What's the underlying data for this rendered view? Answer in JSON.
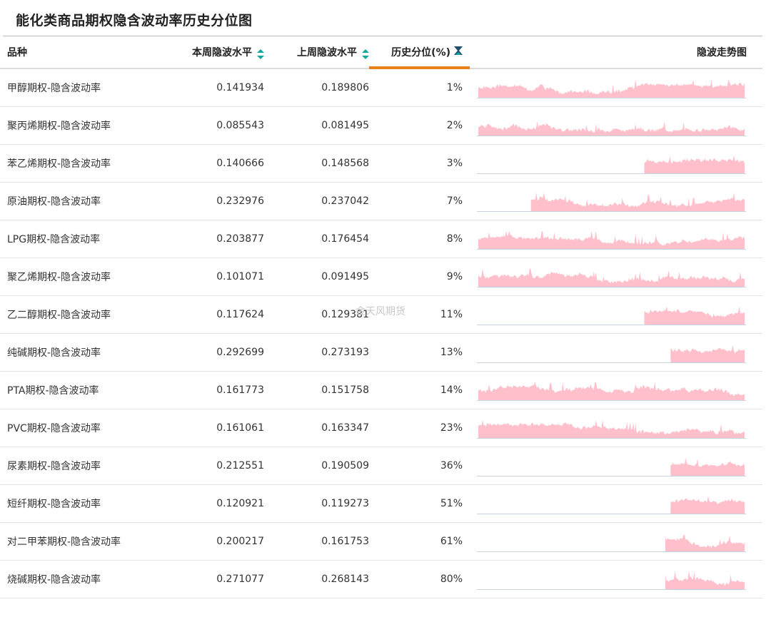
{
  "page": {
    "title": "能化类商品期权隐含波动率历史分位图",
    "watermark": "金天风期货"
  },
  "table": {
    "columns": {
      "name": "品种",
      "this_week": "本周隐波水平",
      "last_week": "上周隐波水平",
      "percentile": "历史分位(%)",
      "trend": "隐波走势图"
    },
    "rows": [
      {
        "name": "甲醇期权-隐含波动率",
        "this_week": "0.141934",
        "last_week": "0.189806",
        "percentile": "1%",
        "trend": {
          "start": 0.0,
          "seed": 3
        }
      },
      {
        "name": "聚丙烯期权-隐含波动率",
        "this_week": "0.085543",
        "last_week": "0.081495",
        "percentile": "2%",
        "trend": {
          "start": 0.0,
          "seed": 7
        }
      },
      {
        "name": "苯乙烯期权-隐含波动率",
        "this_week": "0.140666",
        "last_week": "0.148568",
        "percentile": "3%",
        "trend": {
          "start": 0.63,
          "seed": 11
        }
      },
      {
        "name": "原油期权-隐含波动率",
        "this_week": "0.232976",
        "last_week": "0.237042",
        "percentile": "7%",
        "trend": {
          "start": 0.2,
          "seed": 13
        }
      },
      {
        "name": "LPG期权-隐含波动率",
        "this_week": "0.203877",
        "last_week": "0.176454",
        "percentile": "8%",
        "trend": {
          "start": 0.0,
          "seed": 17
        }
      },
      {
        "name": "聚乙烯期权-隐含波动率",
        "this_week": "0.101071",
        "last_week": "0.091495",
        "percentile": "9%",
        "trend": {
          "start": 0.0,
          "seed": 19
        }
      },
      {
        "name": "乙二醇期权-隐含波动率",
        "this_week": "0.117624",
        "last_week": "0.129381",
        "percentile": "11%",
        "trend": {
          "start": 0.63,
          "seed": 23
        }
      },
      {
        "name": "纯碱期权-隐含波动率",
        "this_week": "0.292699",
        "last_week": "0.273193",
        "percentile": "13%",
        "trend": {
          "start": 0.73,
          "seed": 29
        }
      },
      {
        "name": "PTA期权-隐含波动率",
        "this_week": "0.161773",
        "last_week": "0.151758",
        "percentile": "14%",
        "trend": {
          "start": 0.0,
          "seed": 31
        }
      },
      {
        "name": "PVC期权-隐含波动率",
        "this_week": "0.161061",
        "last_week": "0.163347",
        "percentile": "23%",
        "trend": {
          "start": 0.0,
          "seed": 37
        }
      },
      {
        "name": "尿素期权-隐含波动率",
        "this_week": "0.212551",
        "last_week": "0.190509",
        "percentile": "36%",
        "trend": {
          "start": 0.73,
          "seed": 41
        }
      },
      {
        "name": "短纤期权-隐含波动率",
        "this_week": "0.120921",
        "last_week": "0.119273",
        "percentile": "51%",
        "trend": {
          "start": 0.73,
          "seed": 43
        }
      },
      {
        "name": "对二甲苯期权-隐含波动率",
        "this_week": "0.200217",
        "last_week": "0.161753",
        "percentile": "61%",
        "trend": {
          "start": 0.71,
          "seed": 47
        }
      },
      {
        "name": "烧碱期权-隐含波动率",
        "this_week": "0.271077",
        "last_week": "0.268143",
        "percentile": "80%",
        "trend": {
          "start": 0.71,
          "seed": 53
        }
      }
    ]
  },
  "colors": {
    "sparkline_fill": "#ffc0cb",
    "sparkline_baseline": "#c8d3e0",
    "active_sort": "#e8811a",
    "sort_icon": "#13a89e",
    "filter_icon": "#1f4e6e"
  }
}
